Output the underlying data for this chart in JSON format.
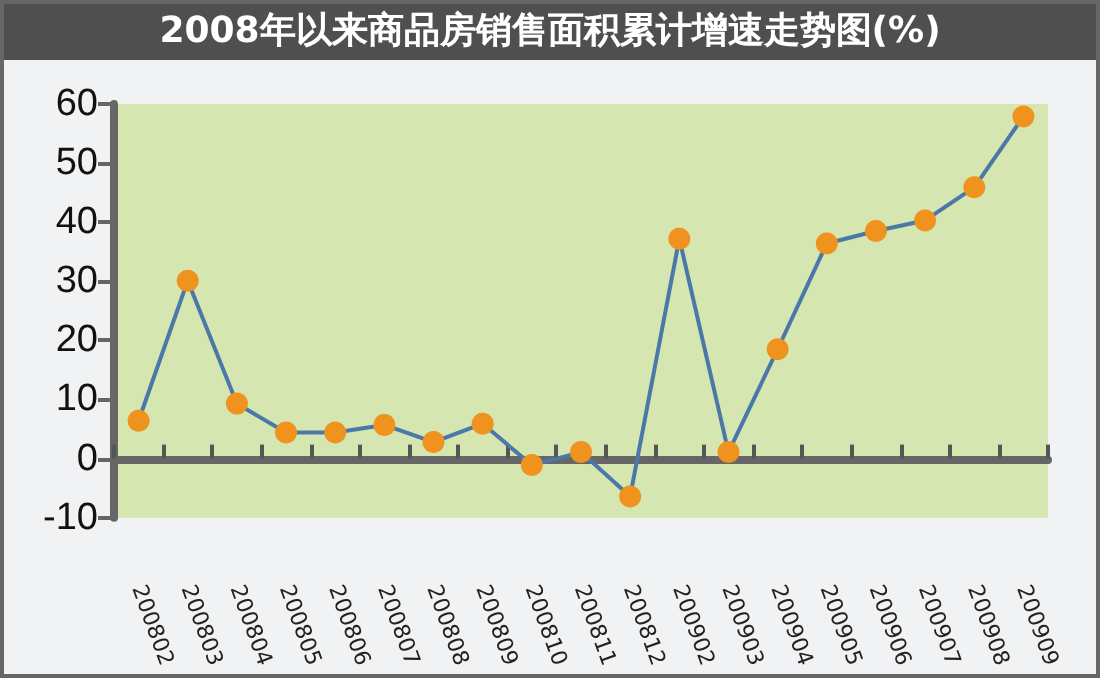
{
  "chart_data": {
    "type": "line",
    "title": "2008年以来商品房销售面积累计增速走势图(%)",
    "categories": [
      "200802",
      "200803",
      "200804",
      "200805",
      "200806",
      "200807",
      "200808",
      "200809",
      "200810",
      "200811",
      "200812",
      "200902",
      "200903",
      "200904",
      "200905",
      "200906",
      "200907",
      "200908",
      "200909"
    ],
    "series": [
      {
        "color": "#4a78a8",
        "values": [
          6.4,
          30.1,
          9.3,
          4.4,
          4.4,
          5.7,
          2.8,
          5.9,
          -1.1,
          1.1,
          -6.4,
          37.2,
          1.1,
          18.5,
          36.4,
          38.5,
          40.3,
          45.9,
          57.9
        ]
      }
    ],
    "ylim": [
      -10,
      60
    ],
    "yticks": [
      -10,
      0,
      10,
      20,
      30,
      40,
      50,
      60
    ],
    "marker": "circle",
    "line_style": "solid"
  }
}
